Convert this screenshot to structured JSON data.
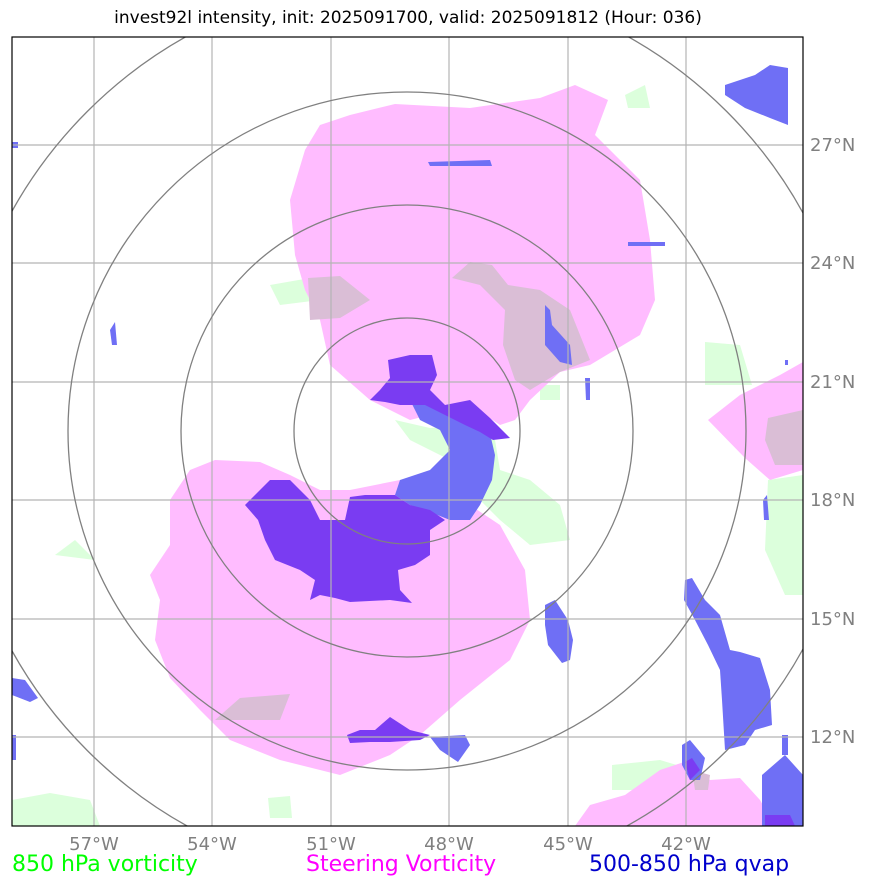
{
  "title": "invest92l intensity, init: 2025091700, valid: 2025091812 (Hour: 036)",
  "map": {
    "lon_ticks": [
      "57°W",
      "54°W",
      "51°W",
      "48°W",
      "45°W",
      "42°W"
    ],
    "lat_ticks": [
      "27°N",
      "24°N",
      "21°N",
      "18°N",
      "15°N",
      "12°N"
    ]
  },
  "legend": [
    {
      "label": "850 hPa vorticity",
      "color": "#00ff00"
    },
    {
      "label": "Steering Vorticity",
      "color": "#ff00ff"
    },
    {
      "label": "500-850 hPa qvap",
      "color": "#0000cc"
    }
  ],
  "colors": {
    "green_fill": "#dcffdc",
    "magenta_fill": "#ffbcff",
    "blue_fill": "#6f6ff5",
    "purple_fill": "#7a3cf2",
    "grid": "#b4b4b4",
    "rings": "#808080"
  }
}
